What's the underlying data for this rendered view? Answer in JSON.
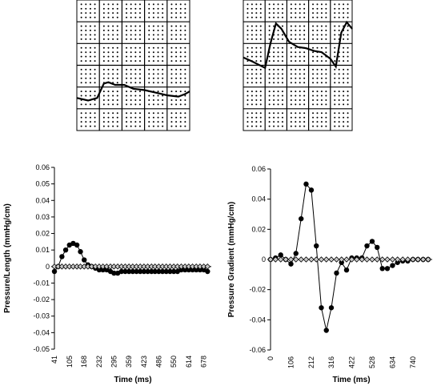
{
  "chart_data": [
    {
      "type": "line",
      "xlabel": "Time (ms)",
      "ylabel": "Pressure/Length (mmHg/cm)",
      "ylim": [
        -0.05,
        0.06
      ],
      "y_ticks": [
        "0.06",
        "0.05",
        "0.04",
        "0.03",
        "0.02",
        "0.01",
        "0",
        "-0.01",
        "-0.02",
        "-0.03",
        "-0.04",
        "-0.05"
      ],
      "x_range": [
        41,
        710
      ],
      "x_tick_labels": [
        "41",
        "105",
        "168",
        "232",
        "295",
        "359",
        "423",
        "486",
        "550",
        "614",
        "678"
      ],
      "grid": false,
      "series": [
        {
          "marker": "circle",
          "x": [
            41,
            57,
            73,
            89,
            105,
            121,
            137,
            152,
            168,
            184,
            200,
            216,
            232,
            248,
            264,
            280,
            295,
            311,
            327,
            343,
            359,
            375,
            391,
            407,
            423,
            439,
            455,
            470,
            486,
            502,
            518,
            534,
            550,
            566,
            582,
            598,
            614,
            630,
            646,
            662,
            678,
            694
          ],
          "values": [
            -0.003,
            0,
            0.006,
            0.01,
            0.013,
            0.014,
            0.013,
            0.009,
            0.004,
            0.001,
            0,
            -0.001,
            -0.002,
            -0.002,
            -0.002,
            -0.003,
            -0.004,
            -0.004,
            -0.003,
            -0.003,
            -0.003,
            -0.003,
            -0.003,
            -0.003,
            -0.003,
            -0.003,
            -0.003,
            -0.003,
            -0.003,
            -0.003,
            -0.003,
            -0.003,
            -0.003,
            -0.003,
            -0.002,
            -0.002,
            -0.002,
            -0.002,
            -0.002,
            -0.002,
            -0.002,
            -0.003
          ]
        },
        {
          "marker": "diamond",
          "x": [
            41,
            57,
            73,
            89,
            105,
            121,
            137,
            152,
            168,
            184,
            200,
            216,
            232,
            248,
            264,
            280,
            295,
            311,
            327,
            343,
            359,
            375,
            391,
            407,
            423,
            439,
            455,
            470,
            486,
            502,
            518,
            534,
            550,
            566,
            582,
            598,
            614,
            630,
            646,
            662,
            678,
            694
          ],
          "values": [
            0,
            0,
            0,
            0,
            0,
            0,
            0,
            0,
            0,
            0,
            0,
            0,
            0,
            0,
            0,
            0,
            0,
            0,
            0,
            0,
            0,
            0,
            0,
            0,
            0,
            0,
            0,
            0,
            0,
            0,
            0,
            0,
            0,
            0,
            0,
            0,
            0,
            0,
            0,
            0,
            0,
            0
          ]
        }
      ]
    },
    {
      "type": "line",
      "xlabel": "Time (ms)",
      "ylabel": "Pressure Gradient (mmHg/cm)",
      "ylim": [
        -0.06,
        0.06
      ],
      "y_ticks": [
        "0.06",
        "0.04",
        "0.02",
        "0",
        "-0.02",
        "-0.04",
        "-0.06"
      ],
      "x_range": [
        0,
        840
      ],
      "x_tick_labels": [
        "0",
        "106",
        "212",
        "316",
        "422",
        "528",
        "634",
        "740"
      ],
      "grid": false,
      "series": [
        {
          "marker": "circle",
          "x": [
            0,
            26,
            53,
            79,
            106,
            132,
            159,
            185,
            212,
            238,
            264,
            290,
            316,
            343,
            369,
            395,
            422,
            448,
            475,
            501,
            528,
            554,
            581,
            607,
            634,
            660,
            687,
            713,
            740,
            766,
            793,
            819
          ],
          "values": [
            0,
            0.001,
            0.003,
            0,
            -0.003,
            0.004,
            0.027,
            0.05,
            0.046,
            0.009,
            -0.032,
            -0.047,
            -0.032,
            -0.009,
            -0.002,
            -0.007,
            0.001,
            0.001,
            0.001,
            0.009,
            0.012,
            0.008,
            -0.006,
            -0.006,
            -0.004,
            -0.002,
            -0.001,
            -0.001,
            0,
            0,
            0,
            0
          ]
        },
        {
          "marker": "diamond",
          "x": [
            0,
            26,
            53,
            79,
            106,
            132,
            159,
            185,
            212,
            238,
            264,
            290,
            316,
            343,
            369,
            395,
            422,
            448,
            475,
            501,
            528,
            554,
            581,
            607,
            634,
            660,
            687,
            713,
            740,
            766,
            793,
            819
          ],
          "values": [
            0,
            0,
            0,
            0,
            0,
            0,
            0,
            0,
            0,
            0,
            0,
            0,
            0,
            0,
            0,
            0,
            0,
            0,
            0,
            0,
            0,
            0,
            0,
            0,
            0,
            0,
            0,
            0,
            0,
            0,
            0,
            0
          ]
        }
      ]
    }
  ]
}
